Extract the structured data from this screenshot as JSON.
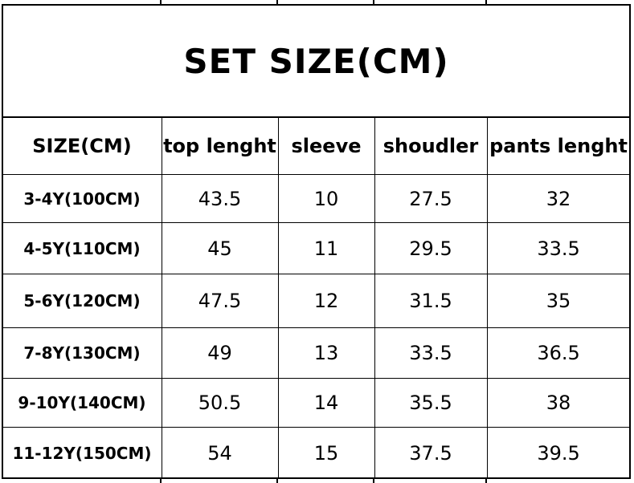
{
  "title": "SET SIZE(CM)",
  "headers": [
    "SIZE(CM)",
    "top lenght",
    "sleeve",
    "shoudler",
    "pants lenght"
  ],
  "rows": [
    [
      "3-4Y(100CM)",
      "43.5",
      "10",
      "27.5",
      "32"
    ],
    [
      "4-5Y(110CM)",
      "45",
      "11",
      "29.5",
      "33.5"
    ],
    [
      "5-6Y(120CM)",
      "47.5",
      "12",
      "31.5",
      "35"
    ],
    [
      "7-8Y(130CM)",
      "49",
      "13",
      "33.5",
      "36.5"
    ],
    [
      "9-10Y(140CM)",
      "50.5",
      "14",
      "35.5",
      "38"
    ],
    [
      "11-12Y(150CM)",
      "54",
      "15",
      "37.5",
      "39.5"
    ]
  ]
}
